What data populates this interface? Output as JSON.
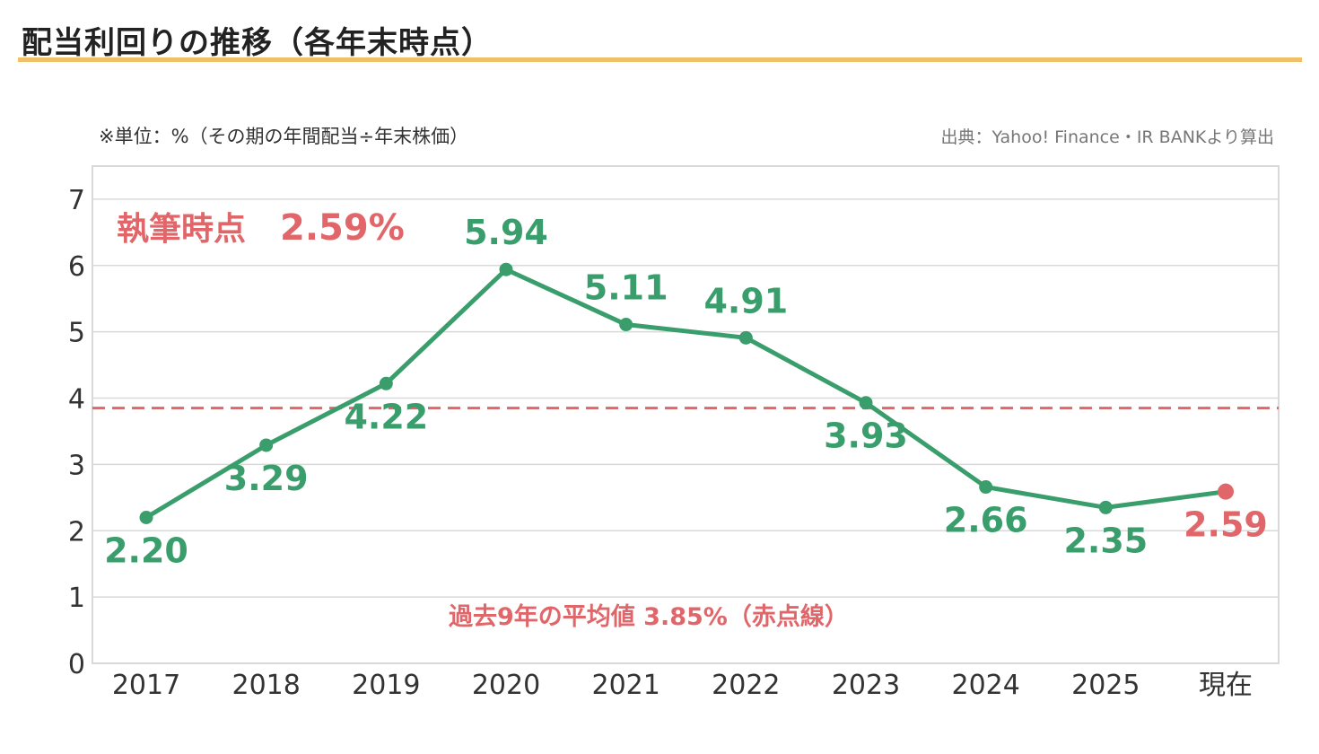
{
  "title": "配当利回りの推移（各年末時点）",
  "unit_note": "※単位：%（その期の年間配当÷年末株価）",
  "source_note": "出典：Yahoo! Finance・IR BANKより算出",
  "annotations": {
    "current_label": "執筆時点",
    "current_value": "2.59%",
    "average_label": "過去9年の平均値 3.85%（赤点線）"
  },
  "colors": {
    "line": "#3a9e6c",
    "highlight": "#e0666a",
    "average": "#e0666a",
    "title_rule": "#f0c068",
    "grid": "#d9d9d9"
  },
  "chart_data": {
    "type": "line",
    "categories": [
      "2017",
      "2018",
      "2019",
      "2020",
      "2021",
      "2022",
      "2023",
      "2024",
      "2025",
      "現在"
    ],
    "series": [
      {
        "values": [
          2.2,
          3.29,
          4.22,
          5.94,
          5.11,
          4.91,
          3.93,
          2.66,
          2.35,
          2.59
        ]
      }
    ],
    "data_labels": [
      "2.20",
      "3.29",
      "4.22",
      "5.94",
      "5.11",
      "4.91",
      "3.93",
      "2.66",
      "2.35",
      "2.59"
    ],
    "highlight_index": 9,
    "average": 3.85,
    "yticks": [
      "0",
      "1",
      "2",
      "3",
      "4",
      "5",
      "6",
      "7"
    ],
    "ylim": [
      0,
      7.5
    ],
    "grid": true,
    "xlabel": "",
    "ylabel": ""
  }
}
